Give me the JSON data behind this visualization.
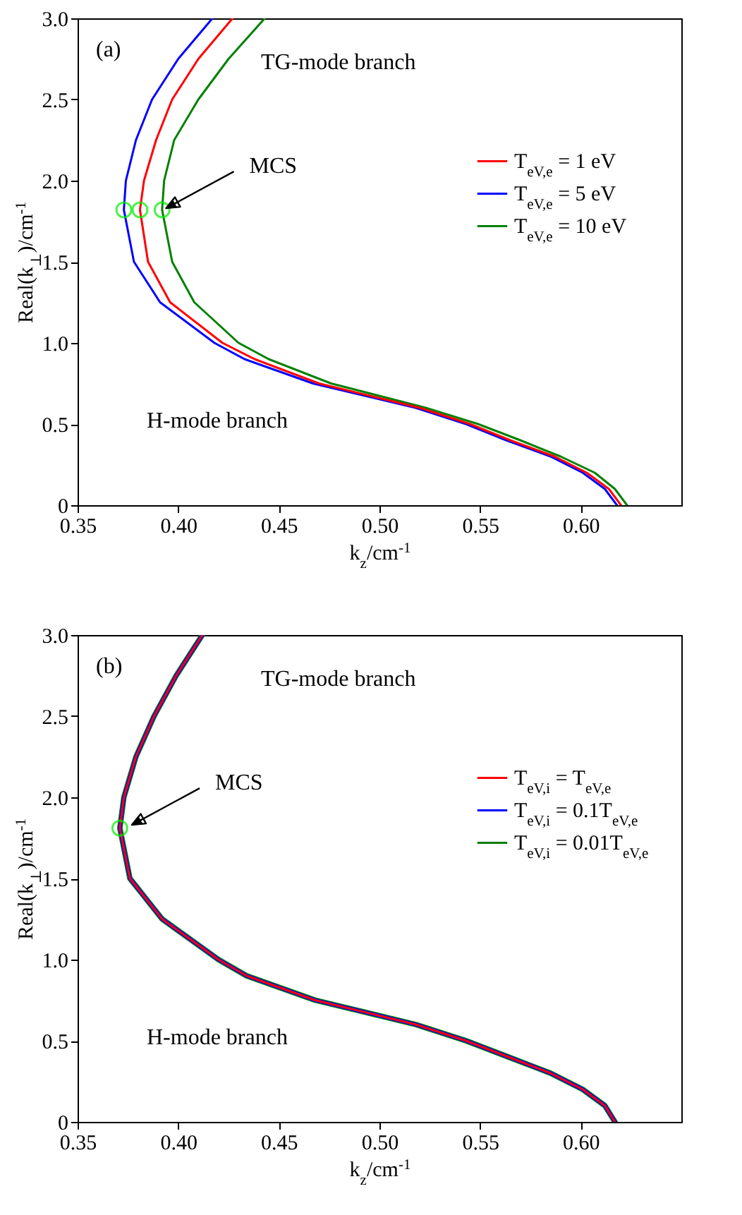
{
  "chart_data": [
    {
      "type": "line",
      "xlabel": "k$_{z}$/cm$^{-1}$",
      "ylabel": "Real(k$_{⊥}$)/cm$^{-1}$",
      "xlim": [
        0.35,
        0.65
      ],
      "ylim": [
        0,
        3
      ],
      "xticks": [
        0.35,
        {
          "value": 0.4,
          "label": "0.40"
        },
        0.45,
        {
          "value": 0.5,
          "label": "0.50"
        },
        0.55,
        {
          "value": 0.6,
          "label": "0.60"
        }
      ],
      "yticks": [
        0,
        0.5,
        {
          "value": 1,
          "label": "1.0"
        },
        1.5,
        {
          "value": 2,
          "label": "2.0"
        },
        2.5,
        {
          "value": 3,
          "label": "3.0"
        }
      ],
      "legend": "right",
      "grid": false,
      "annotations": [
        "(a)",
        "TG-mode branch",
        "H-mode branch",
        {
          "text": "MCS",
          "x": 0.394,
          "y": 1.83
        }
      ],
      "series": [
        {
          "name": "T$_{eV,e}$ = 1 eV",
          "color": "#ff0000",
          "x": [
            0.62,
            0.614,
            0.603,
            0.587,
            0.565,
            0.545,
            0.52,
            0.47,
            0.438,
            0.422,
            0.396,
            0.385,
            0.381,
            0.383,
            0.389,
            0.397,
            0.41,
            0.427
          ],
          "values": [
            0,
            0.1,
            0.2,
            0.3,
            0.4,
            0.5,
            0.6,
            0.75,
            0.9,
            1.0,
            1.25,
            1.5,
            1.82,
            2.0,
            2.25,
            2.5,
            2.75,
            3.0
          ]
        },
        {
          "name": "T$_{eV,e}$ = 5 eV",
          "color": "#0000ff",
          "x": [
            0.618,
            0.612,
            0.601,
            0.585,
            0.563,
            0.543,
            0.518,
            0.467,
            0.433,
            0.418,
            0.391,
            0.378,
            0.373,
            0.374,
            0.379,
            0.387,
            0.4,
            0.417
          ],
          "values": [
            0,
            0.1,
            0.2,
            0.3,
            0.4,
            0.5,
            0.6,
            0.75,
            0.9,
            1.0,
            1.25,
            1.5,
            1.82,
            2.0,
            2.25,
            2.5,
            2.75,
            3.0
          ]
        },
        {
          "name": "T$_{eV,e}$ = 10 eV",
          "color": "#008000",
          "x": [
            0.623,
            0.617,
            0.607,
            0.59,
            0.57,
            0.549,
            0.523,
            0.476,
            0.445,
            0.43,
            0.408,
            0.397,
            0.392,
            0.393,
            0.398,
            0.41,
            0.425,
            0.443
          ],
          "values": [
            0,
            0.1,
            0.2,
            0.3,
            0.4,
            0.5,
            0.6,
            0.75,
            0.9,
            1.0,
            1.25,
            1.5,
            1.82,
            2.0,
            2.25,
            2.5,
            2.75,
            3.0
          ]
        },
        {
          "type": "scatter",
          "color": "#00ee00",
          "marker": "circle",
          "x": [
            0.373,
            0.381,
            0.392
          ],
          "values": [
            1.82,
            1.82,
            1.82
          ]
        }
      ]
    },
    {
      "type": "line",
      "xlabel": "k$_{z}$/cm$^{-1}$",
      "ylabel": "Real(k$_{⊥}$)/cm$^{-1}$",
      "xlim": [
        0.35,
        0.65
      ],
      "ylim": [
        0,
        3
      ],
      "xticks": [
        0.35,
        {
          "value": 0.4,
          "label": "0.40"
        },
        0.45,
        {
          "value": 0.5,
          "label": "0.50"
        },
        0.55,
        {
          "value": 0.6,
          "label": "0.60"
        }
      ],
      "yticks": [
        0,
        0.5,
        {
          "value": 1,
          "label": "1.0"
        },
        1.5,
        {
          "value": 2,
          "label": "2.0"
        },
        2.5,
        {
          "value": 3,
          "label": "3.0"
        }
      ],
      "legend": "right",
      "grid": false,
      "annotations": [
        "(b)",
        "TG-mode branch",
        "H-mode branch",
        {
          "text": "MCS",
          "x": 0.377,
          "y": 1.83
        }
      ],
      "series": [
        {
          "name": "T$_{eV,i}$ = T$_{eV,e}$",
          "color": "#ff0000",
          "x": [
            0.617,
            0.612,
            0.601,
            0.585,
            0.564,
            0.543,
            0.518,
            0.468,
            0.434,
            0.42,
            0.392,
            0.376,
            0.371,
            0.373,
            0.379,
            0.388,
            0.399,
            0.412
          ],
          "values": [
            0,
            0.1,
            0.2,
            0.3,
            0.4,
            0.5,
            0.6,
            0.75,
            0.9,
            1.0,
            1.25,
            1.5,
            1.81,
            2.0,
            2.25,
            2.5,
            2.75,
            3.0
          ]
        },
        {
          "name": "T$_{eV,i}$ = 0.1T$_{eV,e}$",
          "color": "#0000ff",
          "x": [
            0.617,
            0.612,
            0.601,
            0.585,
            0.564,
            0.543,
            0.518,
            0.468,
            0.434,
            0.42,
            0.392,
            0.376,
            0.371,
            0.373,
            0.379,
            0.388,
            0.399,
            0.412
          ],
          "values": [
            0,
            0.1,
            0.2,
            0.3,
            0.4,
            0.5,
            0.6,
            0.75,
            0.9,
            1.0,
            1.25,
            1.5,
            1.81,
            2.0,
            2.25,
            2.5,
            2.75,
            3.0
          ]
        },
        {
          "name": "T$_{eV,i}$ = 0.01T$_{eV,e}$",
          "color": "#008000",
          "x": [
            0.617,
            0.612,
            0.601,
            0.585,
            0.564,
            0.543,
            0.518,
            0.468,
            0.434,
            0.42,
            0.392,
            0.376,
            0.371,
            0.373,
            0.379,
            0.388,
            0.399,
            0.412
          ],
          "values": [
            0,
            0.1,
            0.2,
            0.3,
            0.4,
            0.5,
            0.6,
            0.75,
            0.9,
            1.0,
            1.25,
            1.5,
            1.81,
            2.0,
            2.25,
            2.5,
            2.75,
            3.0
          ]
        },
        {
          "type": "scatter",
          "color": "#00ee00",
          "marker": "circle",
          "x": [
            0.371
          ],
          "values": [
            1.81
          ]
        }
      ]
    }
  ]
}
